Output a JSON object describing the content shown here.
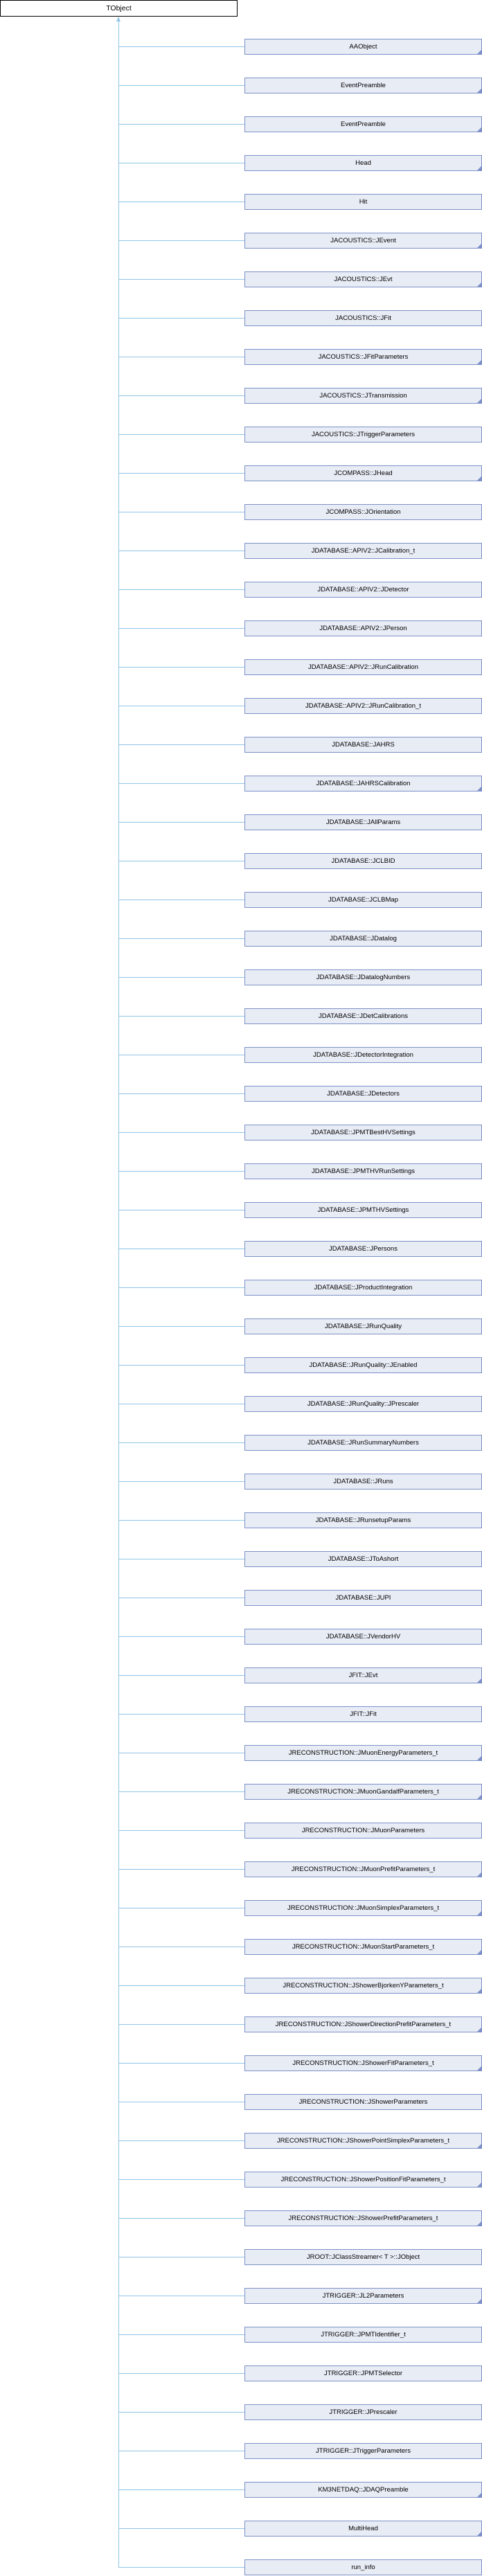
{
  "base_class": "TObject",
  "colors": {
    "connector": "#90c4e8",
    "node_fill": "#e8ecf5",
    "node_border": "#7d91c8"
  },
  "derived_classes": [
    {
      "label": "AAObject",
      "has_children": true
    },
    {
      "label": "EventPreamble",
      "has_children": true
    },
    {
      "label": "EventPreamble",
      "has_children": true
    },
    {
      "label": "Head",
      "has_children": true
    },
    {
      "label": "Hit",
      "has_children": false
    },
    {
      "label": "JACOUSTICS::JEvent",
      "has_children": true
    },
    {
      "label": "JACOUSTICS::JEvt",
      "has_children": true
    },
    {
      "label": "JACOUSTICS::JFit",
      "has_children": false
    },
    {
      "label": "JACOUSTICS::JFitParameters",
      "has_children": true
    },
    {
      "label": "JACOUSTICS::JTransmission",
      "has_children": true
    },
    {
      "label": "JACOUSTICS::JTriggerParameters",
      "has_children": false
    },
    {
      "label": "JCOMPASS::JHead",
      "has_children": true
    },
    {
      "label": "JCOMPASS::JOrientation",
      "has_children": false
    },
    {
      "label": "JDATABASE::APIV2::JCalibration_t",
      "has_children": false
    },
    {
      "label": "JDATABASE::APIV2::JDetector",
      "has_children": false
    },
    {
      "label": "JDATABASE::APIV2::JPerson",
      "has_children": false
    },
    {
      "label": "JDATABASE::APIV2::JRunCalibration",
      "has_children": false
    },
    {
      "label": "JDATABASE::APIV2::JRunCalibration_t",
      "has_children": false
    },
    {
      "label": "JDATABASE::JAHRS",
      "has_children": false
    },
    {
      "label": "JDATABASE::JAHRSCalibration",
      "has_children": true
    },
    {
      "label": "JDATABASE::JAllParams",
      "has_children": false
    },
    {
      "label": "JDATABASE::JCLBID",
      "has_children": false
    },
    {
      "label": "JDATABASE::JCLBMap",
      "has_children": false
    },
    {
      "label": "JDATABASE::JDatalog",
      "has_children": false
    },
    {
      "label": "JDATABASE::JDatalogNumbers",
      "has_children": false
    },
    {
      "label": "JDATABASE::JDetCalibrations",
      "has_children": false
    },
    {
      "label": "JDATABASE::JDetectorIntegration",
      "has_children": false
    },
    {
      "label": "JDATABASE::JDetectors",
      "has_children": false
    },
    {
      "label": "JDATABASE::JPMTBestHVSettings",
      "has_children": false
    },
    {
      "label": "JDATABASE::JPMTHVRunSettings",
      "has_children": false
    },
    {
      "label": "JDATABASE::JPMTHVSettings",
      "has_children": false
    },
    {
      "label": "JDATABASE::JPersons",
      "has_children": false
    },
    {
      "label": "JDATABASE::JProductIntegration",
      "has_children": false
    },
    {
      "label": "JDATABASE::JRunQuality",
      "has_children": false
    },
    {
      "label": "JDATABASE::JRunQuality::JEnabled",
      "has_children": false
    },
    {
      "label": "JDATABASE::JRunQuality::JPrescaler",
      "has_children": false
    },
    {
      "label": "JDATABASE::JRunSummaryNumbers",
      "has_children": false
    },
    {
      "label": "JDATABASE::JRuns",
      "has_children": false
    },
    {
      "label": "JDATABASE::JRunsetupParams",
      "has_children": false
    },
    {
      "label": "JDATABASE::JToAshort",
      "has_children": false
    },
    {
      "label": "JDATABASE::JUPI",
      "has_children": false
    },
    {
      "label": "JDATABASE::JVendorHV",
      "has_children": false
    },
    {
      "label": "JFIT::JEvt",
      "has_children": true
    },
    {
      "label": "JFIT::JFit",
      "has_children": false
    },
    {
      "label": "JRECONSTRUCTION::JMuonEnergyParameters_t",
      "has_children": true
    },
    {
      "label": "JRECONSTRUCTION::JMuonGandalfParameters_t",
      "has_children": true
    },
    {
      "label": "JRECONSTRUCTION::JMuonParameters",
      "has_children": false
    },
    {
      "label": "JRECONSTRUCTION::JMuonPrefitParameters_t",
      "has_children": true
    },
    {
      "label": "JRECONSTRUCTION::JMuonSimplexParameters_t",
      "has_children": true
    },
    {
      "label": "JRECONSTRUCTION::JMuonStartParameters_t",
      "has_children": true
    },
    {
      "label": "JRECONSTRUCTION::JShowerBjorkenYParameters_t",
      "has_children": true
    },
    {
      "label": "JRECONSTRUCTION::JShowerDirectionPrefitParameters_t",
      "has_children": true
    },
    {
      "label": "JRECONSTRUCTION::JShowerFitParameters_t",
      "has_children": true
    },
    {
      "label": "JRECONSTRUCTION::JShowerParameters",
      "has_children": false
    },
    {
      "label": "JRECONSTRUCTION::JShowerPointSimplexParameters_t",
      "has_children": true
    },
    {
      "label": "JRECONSTRUCTION::JShowerPositionFitParameters_t",
      "has_children": true
    },
    {
      "label": "JRECONSTRUCTION::JShowerPrefitParameters_t",
      "has_children": true
    },
    {
      "label": "JROOT::JClassStreamer< T >::JObject",
      "has_children": false
    },
    {
      "label": "JTRIGGER::JL2Parameters",
      "has_children": true
    },
    {
      "label": "JTRIGGER::JPMTIdentifier_t",
      "has_children": false
    },
    {
      "label": "JTRIGGER::JPMTSelector",
      "has_children": false
    },
    {
      "label": "JTRIGGER::JPrescaler",
      "has_children": false
    },
    {
      "label": "JTRIGGER::JTriggerParameters",
      "has_children": false
    },
    {
      "label": "KM3NETDAQ::JDAQPreamble",
      "has_children": true
    },
    {
      "label": "MultiHead",
      "has_children": true
    },
    {
      "label": "run_info",
      "has_children": false
    }
  ]
}
